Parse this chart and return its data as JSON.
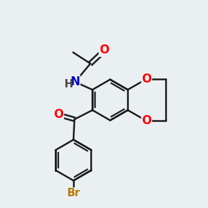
{
  "background_color": "#eaeff2",
  "bond_color": "#1a1a1a",
  "bond_width": 1.8,
  "atom_colors": {
    "O": "#ff0000",
    "N": "#0000cc",
    "Br": "#b87800",
    "H": "#444444"
  },
  "font_size": 12
}
